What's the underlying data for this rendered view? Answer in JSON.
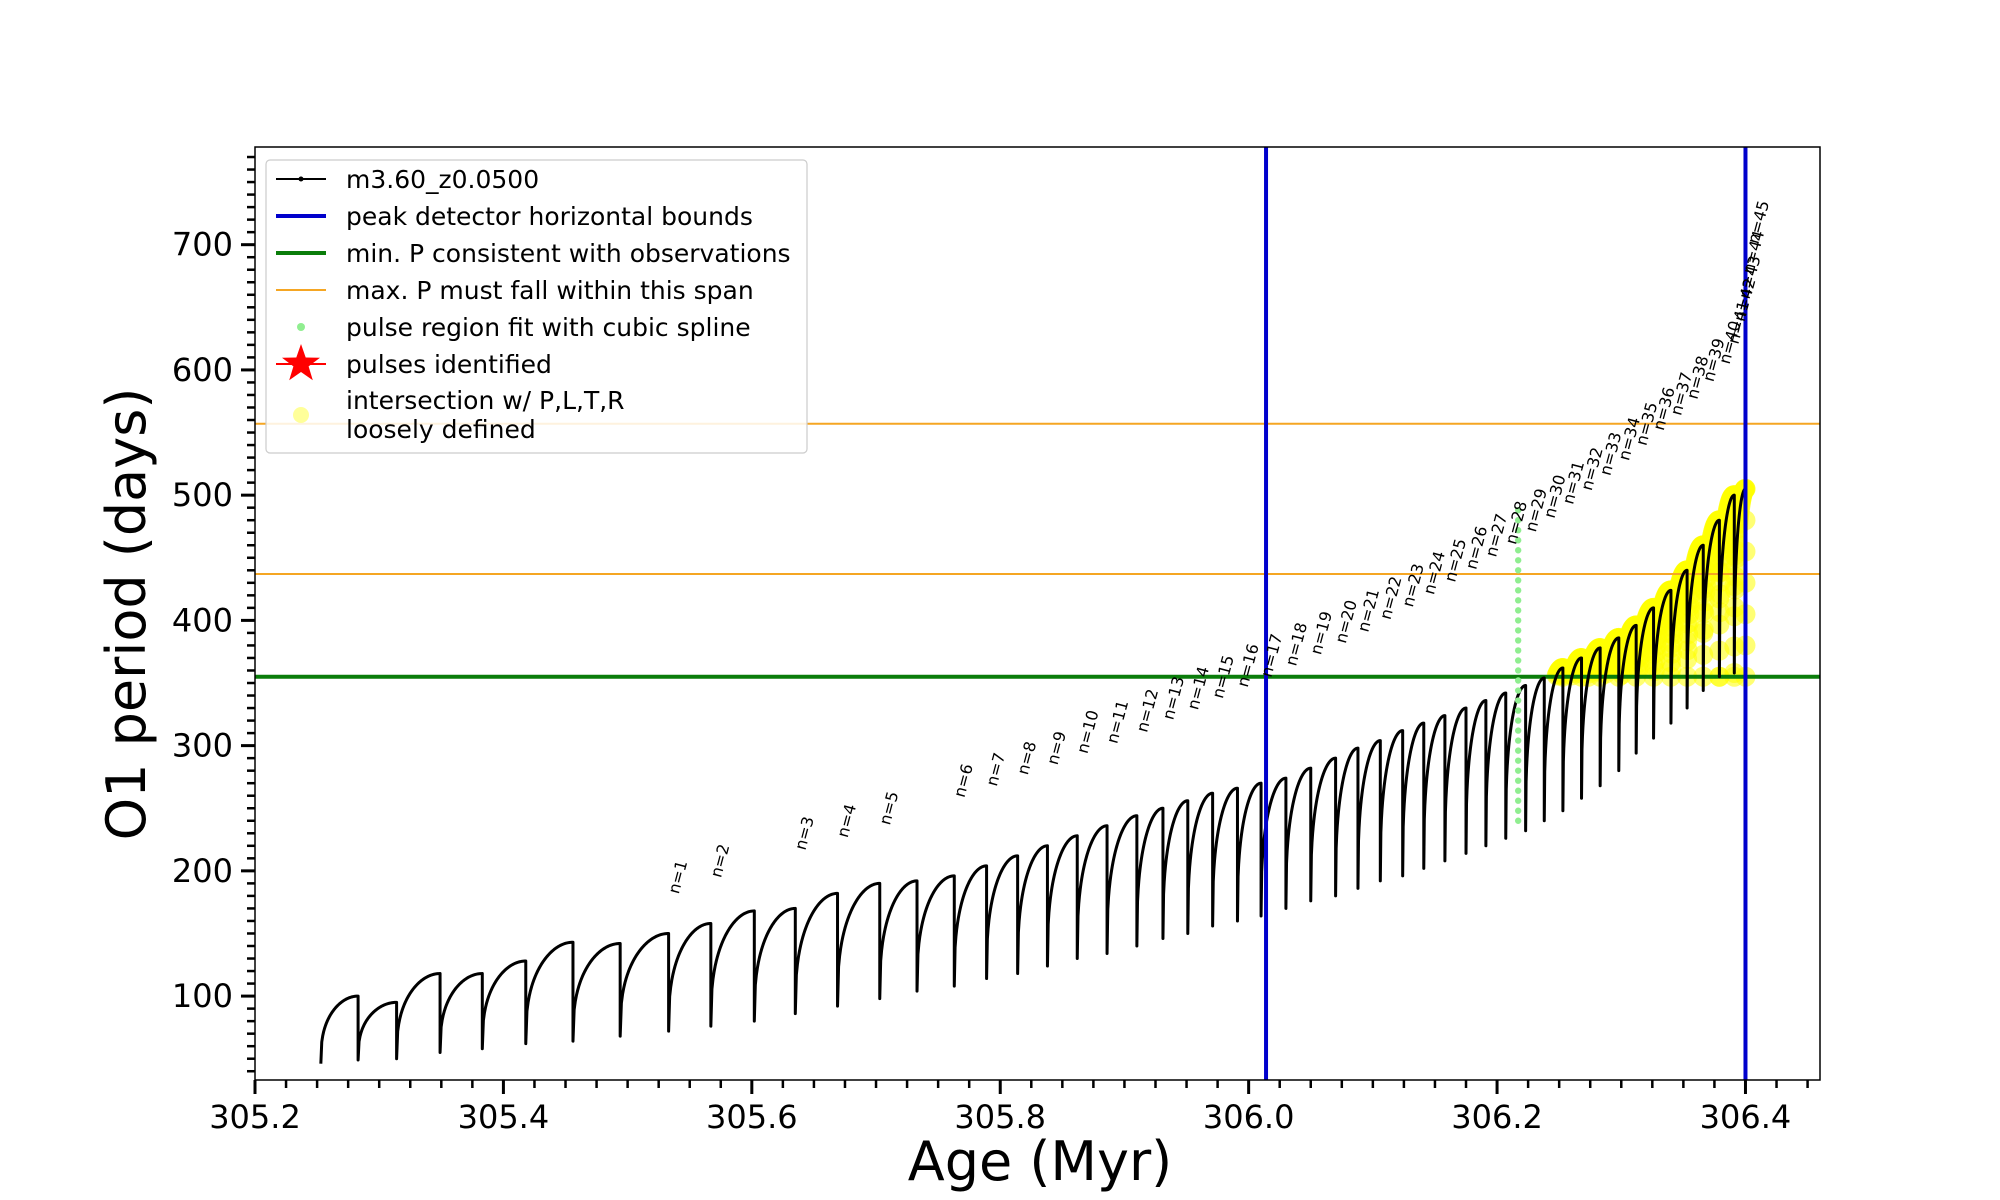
{
  "chart_data": {
    "type": "line",
    "title": "",
    "xlabel": "Age (Myr)",
    "ylabel": "O1 period (days)",
    "xlim": [
      305.2,
      306.46
    ],
    "ylim": [
      33,
      778
    ],
    "xticks": [
      "305.2",
      "305.4",
      "305.6",
      "305.8",
      "306.0",
      "306.2",
      "306.4"
    ],
    "xtick_values": [
      305.2,
      305.4,
      305.6,
      305.8,
      306.0,
      306.2,
      306.4
    ],
    "yticks": [
      "100",
      "200",
      "300",
      "400",
      "500",
      "600",
      "700"
    ],
    "ytick_values": [
      100,
      200,
      300,
      400,
      500,
      600,
      700
    ],
    "grid": false,
    "legend_placement": "top-left",
    "colors": {
      "track": "#000000",
      "bounds": "#0000cc",
      "min_p": "#0a7d0a",
      "max_p_span": "#f5a623",
      "spline": "#90ee90",
      "intersection": "#ffff00"
    },
    "series": [
      {
        "name": "m3.60_z0.0500",
        "age_start": 305.255,
        "age_end": 306.4,
        "pulses_age": [
          305.253,
          305.283,
          305.314,
          305.349,
          305.383,
          305.418,
          305.456,
          305.494,
          305.533,
          305.567,
          305.602,
          305.635,
          305.669,
          305.703,
          305.733,
          305.763,
          305.789,
          305.814,
          305.838,
          305.862,
          305.886,
          305.91,
          305.931,
          305.951,
          305.971,
          305.991,
          306.01,
          306.03,
          306.05,
          306.07,
          306.088,
          306.106,
          306.124,
          306.141,
          306.158,
          306.175,
          306.191,
          306.207,
          306.223,
          306.238,
          306.253,
          306.268,
          306.283,
          306.298,
          306.312,
          306.326,
          306.34,
          306.353,
          306.366,
          306.379,
          306.391,
          306.4
        ],
        "peaks_days": [
          55,
          100,
          95,
          118,
          118,
          128,
          143,
          142,
          150,
          158,
          168,
          170,
          182,
          190,
          192,
          196,
          204,
          212,
          220,
          228,
          236,
          244,
          250,
          256,
          262,
          266,
          270,
          274,
          282,
          290,
          298,
          304,
          312,
          318,
          324,
          330,
          336,
          342,
          348,
          354,
          362,
          370,
          378,
          386,
          396,
          410,
          424,
          440,
          460,
          480,
          500,
          505
        ],
        "minima_days": [
          44,
          46,
          49,
          50,
          55,
          58,
          62,
          64,
          68,
          72,
          76,
          80,
          86,
          92,
          98,
          104,
          108,
          114,
          118,
          124,
          130,
          134,
          140,
          146,
          150,
          156,
          160,
          164,
          170,
          176,
          180,
          186,
          192,
          196,
          202,
          208,
          214,
          220,
          226,
          232,
          240,
          248,
          258,
          268,
          280,
          294,
          306,
          318,
          330,
          344,
          355,
          358
        ]
      }
    ],
    "legend": [
      "m3.60_z0.0500",
      "peak detector horizontal bounds",
      "min. P consistent with observations",
      "max. P must fall within this span",
      "pulse region fit with cubic spline",
      "pulses identified",
      "intersection w/ P,L,T,R",
      "loosely defined"
    ],
    "vertical_bounds_age": [
      306.014,
      306.4
    ],
    "min_period_days": 355,
    "max_period_span_days": [
      437,
      557
    ],
    "spline_age": 306.217,
    "spline_range_days": [
      240,
      490
    ],
    "pulse_labels": [
      {
        "text": "n=1",
        "age": 305.533,
        "days": 181
      },
      {
        "text": "n=2",
        "age": 305.567,
        "days": 194
      },
      {
        "text": "n=3",
        "age": 305.635,
        "days": 216
      },
      {
        "text": "n=4",
        "age": 305.669,
        "days": 226
      },
      {
        "text": "n=5",
        "age": 305.703,
        "days": 236
      },
      {
        "text": "n=6",
        "age": 305.763,
        "days": 258
      },
      {
        "text": "n=7",
        "age": 305.789,
        "days": 267
      },
      {
        "text": "n=8",
        "age": 305.814,
        "days": 276
      },
      {
        "text": "n=9",
        "age": 305.838,
        "days": 284
      },
      {
        "text": "n=10",
        "age": 305.862,
        "days": 293
      },
      {
        "text": "n=11",
        "age": 305.886,
        "days": 301
      },
      {
        "text": "n=12",
        "age": 305.91,
        "days": 310
      },
      {
        "text": "n=13",
        "age": 305.931,
        "days": 320
      },
      {
        "text": "n=14",
        "age": 305.951,
        "days": 328
      },
      {
        "text": "n=15",
        "age": 305.971,
        "days": 337
      },
      {
        "text": "n=16",
        "age": 305.991,
        "days": 346
      },
      {
        "text": "n=17",
        "age": 306.01,
        "days": 354
      },
      {
        "text": "n=18",
        "age": 306.03,
        "days": 363
      },
      {
        "text": "n=19",
        "age": 306.05,
        "days": 372
      },
      {
        "text": "n=20",
        "age": 306.07,
        "days": 381
      },
      {
        "text": "n=21",
        "age": 306.088,
        "days": 390
      },
      {
        "text": "n=22",
        "age": 306.106,
        "days": 400
      },
      {
        "text": "n=23",
        "age": 306.124,
        "days": 410
      },
      {
        "text": "n=24",
        "age": 306.141,
        "days": 420
      },
      {
        "text": "n=25",
        "age": 306.158,
        "days": 430
      },
      {
        "text": "n=26",
        "age": 306.175,
        "days": 440
      },
      {
        "text": "n=27",
        "age": 306.191,
        "days": 450
      },
      {
        "text": "n=28",
        "age": 306.207,
        "days": 460
      },
      {
        "text": "n=29",
        "age": 306.223,
        "days": 470
      },
      {
        "text": "n=30",
        "age": 306.238,
        "days": 481
      },
      {
        "text": "n=31",
        "age": 306.253,
        "days": 492
      },
      {
        "text": "n=32",
        "age": 306.268,
        "days": 503
      },
      {
        "text": "n=33",
        "age": 306.283,
        "days": 515
      },
      {
        "text": "n=34",
        "age": 306.298,
        "days": 527
      },
      {
        "text": "n=35",
        "age": 306.312,
        "days": 539
      },
      {
        "text": "n=36",
        "age": 306.326,
        "days": 551
      },
      {
        "text": "n=37",
        "age": 306.34,
        "days": 563
      },
      {
        "text": "n=38",
        "age": 306.353,
        "days": 576
      },
      {
        "text": "n=39",
        "age": 306.366,
        "days": 590
      },
      {
        "text": "n=40",
        "age": 306.379,
        "days": 604
      },
      {
        "text": "n=41",
        "age": 306.386,
        "days": 620
      },
      {
        "text": "n=42",
        "age": 306.391,
        "days": 638
      },
      {
        "text": "n=43",
        "age": 306.395,
        "days": 656
      },
      {
        "text": "n=44",
        "age": 306.398,
        "days": 676
      },
      {
        "text": "n=45",
        "age": 306.402,
        "days": 700
      }
    ]
  }
}
